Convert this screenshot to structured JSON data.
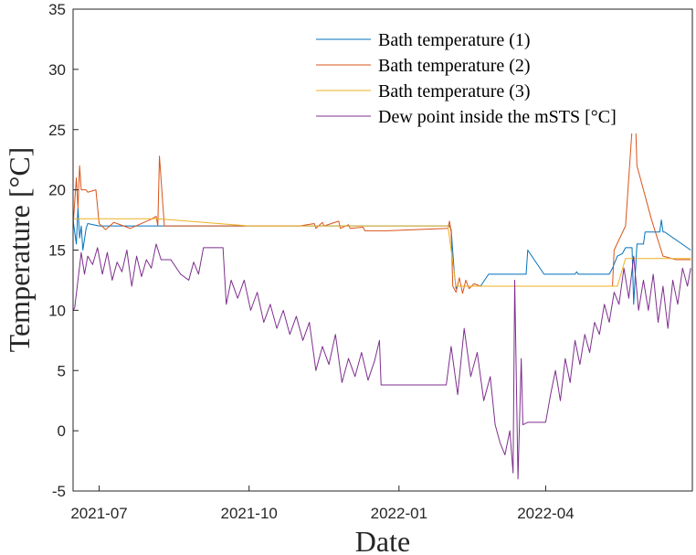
{
  "chart_data": {
    "type": "line",
    "title": "",
    "xlabel": "Date",
    "ylabel": "Temperature [°C]",
    "ylim": [
      -5,
      35
    ],
    "xlim": [
      "2021-06-15",
      "2022-06-30"
    ],
    "x_ticks": [
      "2021-07",
      "2021-10",
      "2022-01",
      "2022-04"
    ],
    "y_ticks": [
      -5,
      0,
      5,
      10,
      15,
      20,
      25,
      30,
      35
    ],
    "grid": false,
    "legend_position": "top-right",
    "series": [
      {
        "name": "Bath temperature (1)",
        "color": "#0072BD",
        "x": [
          "2021-06-15",
          "2021-06-17",
          "2021-06-18",
          "2021-06-19",
          "2021-06-20",
          "2021-06-21",
          "2021-06-23",
          "2021-06-24",
          "2021-07-01",
          "2021-10-01",
          "2021-12-01",
          "2022-01-31",
          "2022-02-01",
          "2022-02-02",
          "2022-02-04",
          "2022-02-05",
          "2022-02-06",
          "2022-02-20",
          "2022-02-25",
          "2022-03-01",
          "2022-03-20",
          "2022-03-21",
          "2022-03-31",
          "2022-04-01",
          "2022-04-02",
          "2022-04-03",
          "2022-04-19",
          "2022-04-20",
          "2022-04-21",
          "2022-04-25",
          "2022-05-10",
          "2022-05-12",
          "2022-05-15",
          "2022-05-18",
          "2022-05-20",
          "2022-05-24",
          "2022-05-25",
          "2022-05-27",
          "2022-05-31",
          "2022-06-01",
          "2022-06-10",
          "2022-06-11",
          "2022-06-12",
          "2022-06-13",
          "2022-06-29"
        ],
        "y": [
          17.5,
          15.5,
          18.5,
          16.0,
          17.0,
          15.0,
          16.8,
          17.2,
          17.0,
          17.0,
          17.0,
          17.0,
          17.0,
          16.7,
          13.0,
          11.8,
          12.0,
          12.0,
          13.0,
          13.0,
          13.0,
          15.0,
          13.0,
          13.0,
          13.0,
          13.0,
          13.0,
          13.2,
          13.0,
          13.0,
          13.0,
          13.5,
          14.5,
          14.7,
          15.2,
          15.2,
          10.5,
          15.5,
          15.5,
          16.5,
          16.5,
          17.5,
          16.5,
          16.5,
          15.0
        ]
      },
      {
        "name": "Bath temperature (2)",
        "color": "#D95319",
        "x": [
          "2021-06-15",
          "2021-06-17",
          "2021-06-18",
          "2021-06-19",
          "2021-06-20",
          "2021-06-21",
          "2021-06-23",
          "2021-06-24",
          "2021-06-29",
          "2021-07-01",
          "2021-07-05",
          "2021-07-10",
          "2021-07-20",
          "2021-08-01",
          "2021-08-05",
          "2021-08-06",
          "2021-08-07",
          "2021-08-10",
          "2021-09-01",
          "2021-10-01",
          "2021-11-01",
          "2021-11-10",
          "2021-11-11",
          "2021-11-15",
          "2021-11-16",
          "2021-11-25",
          "2021-11-26",
          "2021-12-01",
          "2021-12-02",
          "2021-12-10",
          "2021-12-11",
          "2021-12-20",
          "2021-12-25",
          "2022-01-31",
          "2022-02-01",
          "2022-02-02",
          "2022-02-03",
          "2022-02-05",
          "2022-02-07",
          "2022-02-09",
          "2022-02-11",
          "2022-02-13",
          "2022-02-16",
          "2022-02-20",
          "2022-03-01",
          "2022-04-01",
          "2022-05-01",
          "2022-05-12",
          "2022-05-13",
          "2022-05-20",
          "2022-05-24",
          "2022-05-26",
          "2022-05-27",
          "2022-06-05",
          "2022-06-12",
          "2022-06-20",
          "2022-06-29"
        ],
        "y": [
          17.0,
          21.0,
          18.5,
          22.0,
          20.0,
          20.0,
          20.0,
          19.8,
          20.0,
          17.2,
          16.7,
          17.3,
          16.8,
          17.5,
          17.8,
          17.0,
          22.8,
          17.0,
          17.0,
          17.0,
          17.0,
          17.2,
          16.8,
          17.3,
          17.0,
          17.4,
          16.8,
          17.1,
          16.8,
          16.9,
          16.6,
          16.6,
          16.6,
          16.8,
          17.4,
          16.5,
          12.0,
          11.5,
          12.7,
          11.4,
          12.5,
          11.8,
          12.2,
          12.0,
          12.0,
          12.0,
          12.0,
          12.0,
          15.0,
          17.0,
          25.0,
          26.3,
          22.0,
          17.5,
          14.5,
          14.2,
          14.2
        ]
      },
      {
        "name": "Bath temperature (3)",
        "color": "#EDB120",
        "x": [
          "2021-06-15",
          "2021-06-20",
          "2021-06-21",
          "2021-07-01",
          "2021-08-01",
          "2021-08-06",
          "2021-10-01",
          "2022-01-01",
          "2022-01-31",
          "2022-02-05",
          "2022-03-01",
          "2022-04-01",
          "2022-05-15",
          "2022-05-20",
          "2022-06-01",
          "2022-06-15",
          "2022-06-29"
        ],
        "y": [
          17.6,
          17.6,
          17.6,
          17.6,
          17.6,
          17.6,
          17.0,
          17.0,
          17.0,
          12.0,
          12.0,
          12.0,
          12.0,
          14.3,
          14.3,
          14.3,
          14.3
        ]
      },
      {
        "name": "Dew point inside the mSTS [°C]",
        "color": "#7E2F8E",
        "x": [
          "2021-06-15",
          "2021-06-16",
          "2021-06-18",
          "2021-06-20",
          "2021-06-22",
          "2021-06-24",
          "2021-06-27",
          "2021-06-30",
          "2021-07-03",
          "2021-07-06",
          "2021-07-09",
          "2021-07-12",
          "2021-07-15",
          "2021-07-18",
          "2021-07-21",
          "2021-07-24",
          "2021-07-27",
          "2021-07-30",
          "2021-08-02",
          "2021-08-05",
          "2021-08-08",
          "2021-08-11",
          "2021-08-14",
          "2021-08-20",
          "2021-08-25",
          "2021-08-28",
          "2021-08-31",
          "2021-09-03",
          "2021-09-06",
          "2021-09-09",
          "2021-09-12",
          "2021-09-15",
          "2021-09-17",
          "2021-09-20",
          "2021-09-24",
          "2021-09-28",
          "2021-10-02",
          "2021-10-06",
          "2021-10-10",
          "2021-10-14",
          "2021-10-18",
          "2021-10-22",
          "2021-10-26",
          "2021-10-30",
          "2021-11-03",
          "2021-11-07",
          "2021-11-11",
          "2021-11-15",
          "2021-11-19",
          "2021-11-23",
          "2021-11-27",
          "2021-12-01",
          "2021-12-05",
          "2021-12-09",
          "2021-12-13",
          "2021-12-17",
          "2021-12-20",
          "2021-12-21",
          "2021-12-25",
          "2022-01-01",
          "2022-01-10",
          "2022-01-20",
          "2022-01-30",
          "2022-02-02",
          "2022-02-06",
          "2022-02-10",
          "2022-02-14",
          "2022-02-18",
          "2022-02-22",
          "2022-02-26",
          "2022-03-01",
          "2022-03-04",
          "2022-03-07",
          "2022-03-10",
          "2022-03-12",
          "2022-03-13",
          "2022-03-15",
          "2022-03-17",
          "2022-03-18",
          "2022-03-21",
          "2022-03-25",
          "2022-04-01",
          "2022-04-04",
          "2022-04-07",
          "2022-04-10",
          "2022-04-13",
          "2022-04-16",
          "2022-04-19",
          "2022-04-22",
          "2022-04-25",
          "2022-04-28",
          "2022-05-01",
          "2022-05-04",
          "2022-05-07",
          "2022-05-10",
          "2022-05-13",
          "2022-05-16",
          "2022-05-19",
          "2022-05-22",
          "2022-05-25",
          "2022-05-28",
          "2022-05-31",
          "2022-06-03",
          "2022-06-06",
          "2022-06-09",
          "2022-06-12",
          "2022-06-15",
          "2022-06-18",
          "2022-06-21",
          "2022-06-24",
          "2022-06-27",
          "2022-06-29"
        ],
        "y": [
          10.0,
          10.2,
          12.5,
          14.8,
          13.0,
          14.5,
          13.8,
          15.2,
          13.0,
          14.8,
          12.5,
          14.0,
          13.2,
          15.0,
          12.0,
          14.5,
          12.8,
          14.2,
          13.5,
          15.5,
          14.2,
          14.2,
          14.2,
          13.0,
          12.5,
          14.0,
          13.0,
          15.2,
          15.2,
          15.2,
          15.2,
          15.2,
          10.5,
          12.5,
          11.0,
          12.5,
          10.0,
          11.5,
          9.0,
          10.5,
          8.5,
          10.0,
          8.0,
          9.5,
          7.5,
          9.0,
          5.0,
          7.0,
          5.5,
          8.0,
          4.0,
          6.0,
          4.5,
          6.5,
          4.2,
          5.8,
          7.5,
          3.8,
          3.8,
          3.8,
          3.8,
          3.8,
          3.8,
          7.0,
          3.0,
          8.5,
          4.5,
          6.5,
          2.5,
          4.5,
          0.5,
          -1.0,
          -2.0,
          0.0,
          -3.5,
          12.5,
          -4.0,
          6.0,
          0.5,
          0.7,
          0.7,
          0.7,
          3.0,
          5.0,
          2.5,
          6.0,
          4.0,
          7.5,
          5.5,
          8.0,
          6.5,
          9.0,
          8.0,
          10.5,
          9.0,
          11.5,
          10.5,
          13.5,
          11.0,
          14.5,
          10.0,
          12.5,
          10.0,
          13.0,
          9.0,
          12.0,
          8.5,
          12.5,
          10.5,
          13.5,
          12.0,
          13.5
        ]
      }
    ]
  }
}
